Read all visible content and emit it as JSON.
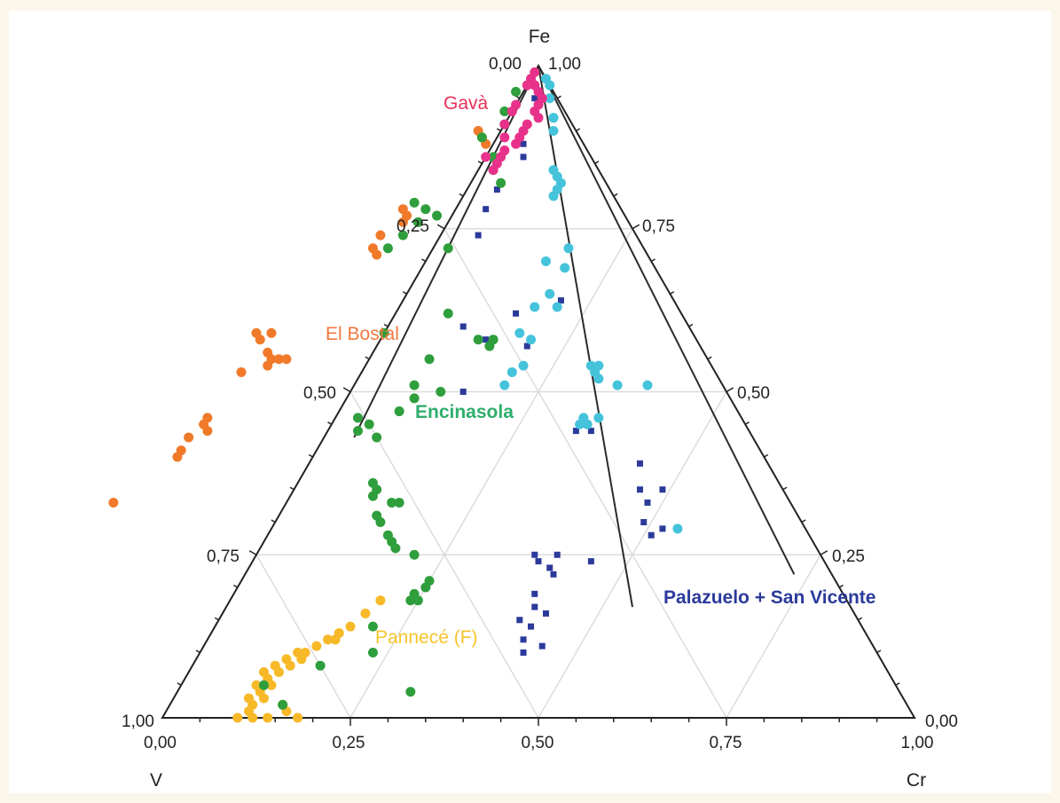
{
  "chart_data": {
    "type": "scatter",
    "subtype": "ternary",
    "axes": {
      "top": "Fe",
      "left": "V",
      "right": "Cr",
      "range": [
        0,
        1
      ],
      "ticks": [
        0,
        0.25,
        0.5,
        0.75,
        1
      ]
    },
    "tick_labels": {
      "bottom": [
        "0,00",
        "0,25",
        "0,50",
        "0,75",
        "1,00"
      ],
      "left": [
        "1,00",
        "0,75",
        "0,50",
        "0,25",
        "0,00"
      ],
      "right": [
        "0,00",
        "0,25",
        "0,50",
        "0,75",
        "1,00"
      ]
    },
    "grid": true,
    "colors": {
      "Gavà": "#e8318a",
      "El Bostal": "#f07a2a",
      "Encinasola": "#2f9e3c",
      "Pannecé (F)": "#f7b928",
      "Palazuelo + San Vicente": "#2b3a9a",
      "cyan_series": "#45c3db"
    },
    "label_colors": {
      "Gavà": "#e8315a",
      "El Bostal": "#f07840",
      "Encinasola": "#2fae6c",
      "Pannecé (F)": "#f7c42a",
      "Palazuelo + San Vicente": "#2b3a9a"
    },
    "group_labels": [
      "Gavà",
      "El Bostal",
      "Encinasola",
      "Pannecé (F)",
      "Palazuelo + San Vicente"
    ],
    "divider_lines": [
      {
        "from": {
          "fe": 1,
          "cr": 0
        },
        "to": {
          "fe": 0.43,
          "cr": 0.04
        }
      },
      {
        "from": {
          "fe": 1,
          "cr": 0
        },
        "to": {
          "fe": 0.17,
          "cr": 0.54
        }
      },
      {
        "from": {
          "fe": 1,
          "cr": 0
        },
        "to": {
          "fe": 0.22,
          "cr": 0.73
        }
      }
    ],
    "series": [
      {
        "name": "Gavà",
        "marker": "circle",
        "points": [
          {
            "fe": 0.99,
            "cr": 0.0
          },
          {
            "fe": 0.98,
            "cr": 0.0
          },
          {
            "fe": 0.97,
            "cr": 0.01
          },
          {
            "fe": 0.96,
            "cr": 0.02
          },
          {
            "fe": 0.95,
            "cr": 0.03
          },
          {
            "fe": 0.94,
            "cr": 0.03
          },
          {
            "fe": 0.93,
            "cr": 0.03
          },
          {
            "fe": 0.92,
            "cr": 0.04
          },
          {
            "fe": 0.91,
            "cr": 0.03
          },
          {
            "fe": 0.9,
            "cr": 0.03
          },
          {
            "fe": 0.89,
            "cr": 0.03
          },
          {
            "fe": 0.88,
            "cr": 0.03
          },
          {
            "fe": 0.87,
            "cr": 0.02
          },
          {
            "fe": 0.86,
            "cr": 0.02
          },
          {
            "fe": 0.85,
            "cr": 0.02
          },
          {
            "fe": 0.84,
            "cr": 0.02
          },
          {
            "fe": 0.94,
            "cr": 0.0
          },
          {
            "fe": 0.91,
            "cr": 0.0
          },
          {
            "fe": 0.89,
            "cr": 0.01
          },
          {
            "fe": 0.86,
            "cr": 0.0
          },
          {
            "fe": 0.93,
            "cr": 0.0
          },
          {
            "fe": 0.97,
            "cr": 0.0
          }
        ]
      },
      {
        "name": "El Bostal",
        "marker": "circle",
        "points": [
          {
            "fe": 0.9,
            "cr": -0.03
          },
          {
            "fe": 0.89,
            "cr": -0.02
          },
          {
            "fe": 0.88,
            "cr": -0.01
          },
          {
            "fe": 0.78,
            "cr": -0.07
          },
          {
            "fe": 0.77,
            "cr": -0.06
          },
          {
            "fe": 0.76,
            "cr": -0.06
          },
          {
            "fe": 0.74,
            "cr": -0.08
          },
          {
            "fe": 0.72,
            "cr": -0.08
          },
          {
            "fe": 0.71,
            "cr": -0.07
          },
          {
            "fe": 0.59,
            "cr": -0.17
          },
          {
            "fe": 0.59,
            "cr": -0.15
          },
          {
            "fe": 0.58,
            "cr": -0.16
          },
          {
            "fe": 0.56,
            "cr": -0.14
          },
          {
            "fe": 0.55,
            "cr": -0.13
          },
          {
            "fe": 0.55,
            "cr": -0.12
          },
          {
            "fe": 0.55,
            "cr": -0.11
          },
          {
            "fe": 0.54,
            "cr": -0.13
          },
          {
            "fe": 0.53,
            "cr": -0.16
          },
          {
            "fe": 0.46,
            "cr": -0.17
          },
          {
            "fe": 0.45,
            "cr": -0.17
          },
          {
            "fe": 0.44,
            "cr": -0.16
          },
          {
            "fe": 0.43,
            "cr": -0.18
          },
          {
            "fe": 0.41,
            "cr": -0.18
          },
          {
            "fe": 0.4,
            "cr": -0.18
          },
          {
            "fe": 0.33,
            "cr": -0.23
          }
        ]
      },
      {
        "name": "Encinasola",
        "marker": "circle",
        "points": [
          {
            "fe": 0.96,
            "cr": -0.01
          },
          {
            "fe": 0.93,
            "cr": -0.01
          },
          {
            "fe": 0.91,
            "cr": 0.0
          },
          {
            "fe": 0.89,
            "cr": -0.02
          },
          {
            "fe": 0.86,
            "cr": 0.01
          },
          {
            "fe": 0.84,
            "cr": 0.02
          },
          {
            "fe": 0.82,
            "cr": 0.04
          },
          {
            "fe": 0.79,
            "cr": -0.06
          },
          {
            "fe": 0.78,
            "cr": -0.04
          },
          {
            "fe": 0.77,
            "cr": -0.02
          },
          {
            "fe": 0.76,
            "cr": -0.04
          },
          {
            "fe": 0.74,
            "cr": -0.05
          },
          {
            "fe": 0.72,
            "cr": -0.06
          },
          {
            "fe": 0.72,
            "cr": 0.02
          },
          {
            "fe": 0.59,
            "cr": 0.0
          },
          {
            "fe": 0.62,
            "cr": 0.07
          },
          {
            "fe": 0.58,
            "cr": 0.13
          },
          {
            "fe": 0.57,
            "cr": 0.15
          },
          {
            "fe": 0.58,
            "cr": 0.15
          },
          {
            "fe": 0.55,
            "cr": 0.08
          },
          {
            "fe": 0.51,
            "cr": 0.08
          },
          {
            "fe": 0.5,
            "cr": 0.12
          },
          {
            "fe": 0.49,
            "cr": 0.09
          },
          {
            "fe": 0.47,
            "cr": 0.08
          },
          {
            "fe": 0.46,
            "cr": 0.03
          },
          {
            "fe": 0.45,
            "cr": 0.05
          },
          {
            "fe": 0.44,
            "cr": 0.04
          },
          {
            "fe": 0.43,
            "cr": 0.07
          },
          {
            "fe": 0.36,
            "cr": 0.1
          },
          {
            "fe": 0.35,
            "cr": 0.11
          },
          {
            "fe": 0.34,
            "cr": 0.11
          },
          {
            "fe": 0.33,
            "cr": 0.15
          },
          {
            "fe": 0.33,
            "cr": 0.14
          },
          {
            "fe": 0.31,
            "cr": 0.13
          },
          {
            "fe": 0.3,
            "cr": 0.14
          },
          {
            "fe": 0.28,
            "cr": 0.16
          },
          {
            "fe": 0.27,
            "cr": 0.17
          },
          {
            "fe": 0.26,
            "cr": 0.18
          },
          {
            "fe": 0.25,
            "cr": 0.21
          },
          {
            "fe": 0.21,
            "cr": 0.25
          },
          {
            "fe": 0.2,
            "cr": 0.25
          },
          {
            "fe": 0.19,
            "cr": 0.24
          },
          {
            "fe": 0.18,
            "cr": 0.24
          },
          {
            "fe": 0.18,
            "cr": 0.25
          },
          {
            "fe": 0.14,
            "cr": 0.21
          },
          {
            "fe": 0.1,
            "cr": 0.23
          },
          {
            "fe": 0.05,
            "cr": 0.11
          },
          {
            "fe": 0.08,
            "cr": 0.17
          },
          {
            "fe": 0.02,
            "cr": 0.15
          },
          {
            "fe": 0.04,
            "cr": 0.31
          }
        ]
      },
      {
        "name": "Pannecé (F)",
        "marker": "circle",
        "points": [
          {
            "fe": 0.18,
            "cr": 0.2
          },
          {
            "fe": 0.16,
            "cr": 0.19
          },
          {
            "fe": 0.14,
            "cr": 0.18
          },
          {
            "fe": 0.13,
            "cr": 0.17
          },
          {
            "fe": 0.12,
            "cr": 0.17
          },
          {
            "fe": 0.12,
            "cr": 0.16
          },
          {
            "fe": 0.11,
            "cr": 0.15
          },
          {
            "fe": 0.1,
            "cr": 0.14
          },
          {
            "fe": 0.1,
            "cr": 0.13
          },
          {
            "fe": 0.09,
            "cr": 0.14
          },
          {
            "fe": 0.09,
            "cr": 0.12
          },
          {
            "fe": 0.08,
            "cr": 0.13
          },
          {
            "fe": 0.08,
            "cr": 0.11
          },
          {
            "fe": 0.07,
            "cr": 0.12
          },
          {
            "fe": 0.07,
            "cr": 0.1
          },
          {
            "fe": 0.06,
            "cr": 0.11
          },
          {
            "fe": 0.05,
            "cr": 0.12
          },
          {
            "fe": 0.05,
            "cr": 0.1
          },
          {
            "fe": 0.04,
            "cr": 0.11
          },
          {
            "fe": 0.03,
            "cr": 0.1
          },
          {
            "fe": 0.03,
            "cr": 0.12
          },
          {
            "fe": 0.02,
            "cr": 0.11
          },
          {
            "fe": 0.01,
            "cr": 0.11
          },
          {
            "fe": 0.0,
            "cr": 0.1
          },
          {
            "fe": 0.0,
            "cr": 0.12
          },
          {
            "fe": 0.0,
            "cr": 0.14
          },
          {
            "fe": 0.01,
            "cr": 0.16
          },
          {
            "fe": 0.02,
            "cr": 0.15
          },
          {
            "fe": 0.0,
            "cr": 0.18
          }
        ]
      },
      {
        "name": "",
        "marker": "circle",
        "points": [
          {
            "fe": 0.98,
            "cr": 0.02
          },
          {
            "fe": 0.97,
            "cr": 0.03
          },
          {
            "fe": 0.95,
            "cr": 0.04
          },
          {
            "fe": 0.92,
            "cr": 0.06
          },
          {
            "fe": 0.9,
            "cr": 0.07
          },
          {
            "fe": 0.84,
            "cr": 0.1
          },
          {
            "fe": 0.83,
            "cr": 0.11
          },
          {
            "fe": 0.82,
            "cr": 0.12
          },
          {
            "fe": 0.81,
            "cr": 0.12
          },
          {
            "fe": 0.8,
            "cr": 0.12
          },
          {
            "fe": 0.72,
            "cr": 0.18
          },
          {
            "fe": 0.7,
            "cr": 0.16
          },
          {
            "fe": 0.69,
            "cr": 0.19
          },
          {
            "fe": 0.65,
            "cr": 0.19
          },
          {
            "fe": 0.63,
            "cr": 0.18
          },
          {
            "fe": 0.63,
            "cr": 0.21
          },
          {
            "fe": 0.59,
            "cr": 0.18
          },
          {
            "fe": 0.58,
            "cr": 0.2
          },
          {
            "fe": 0.54,
            "cr": 0.21
          },
          {
            "fe": 0.53,
            "cr": 0.2
          },
          {
            "fe": 0.51,
            "cr": 0.2
          },
          {
            "fe": 0.54,
            "cr": 0.3
          },
          {
            "fe": 0.54,
            "cr": 0.31
          },
          {
            "fe": 0.53,
            "cr": 0.31
          },
          {
            "fe": 0.52,
            "cr": 0.32
          },
          {
            "fe": 0.46,
            "cr": 0.33
          },
          {
            "fe": 0.45,
            "cr": 0.33
          },
          {
            "fe": 0.51,
            "cr": 0.39
          },
          {
            "fe": 0.51,
            "cr": 0.35
          },
          {
            "fe": 0.46,
            "cr": 0.35
          },
          {
            "fe": 0.45,
            "cr": 0.34
          },
          {
            "fe": 0.29,
            "cr": 0.54
          }
        ]
      },
      {
        "name": "Palazuelo + San Vicente",
        "marker": "square",
        "points": [
          {
            "fe": 0.95,
            "cr": 0.02
          },
          {
            "fe": 0.88,
            "cr": 0.04
          },
          {
            "fe": 0.86,
            "cr": 0.05
          },
          {
            "fe": 0.81,
            "cr": 0.04
          },
          {
            "fe": 0.78,
            "cr": 0.04
          },
          {
            "fe": 0.74,
            "cr": 0.05
          },
          {
            "fe": 0.64,
            "cr": 0.21
          },
          {
            "fe": 0.62,
            "cr": 0.16
          },
          {
            "fe": 0.6,
            "cr": 0.1
          },
          {
            "fe": 0.58,
            "cr": 0.14
          },
          {
            "fe": 0.57,
            "cr": 0.2
          },
          {
            "fe": 0.5,
            "cr": 0.15
          },
          {
            "fe": 0.46,
            "cr": 0.33
          },
          {
            "fe": 0.44,
            "cr": 0.35
          },
          {
            "fe": 0.44,
            "cr": 0.33
          },
          {
            "fe": 0.39,
            "cr": 0.44
          },
          {
            "fe": 0.35,
            "cr": 0.46
          },
          {
            "fe": 0.33,
            "cr": 0.48
          },
          {
            "fe": 0.3,
            "cr": 0.49
          },
          {
            "fe": 0.29,
            "cr": 0.52
          },
          {
            "fe": 0.28,
            "cr": 0.51
          },
          {
            "fe": 0.25,
            "cr": 0.4
          },
          {
            "fe": 0.25,
            "cr": 0.37
          },
          {
            "fe": 0.24,
            "cr": 0.38
          },
          {
            "fe": 0.23,
            "cr": 0.4
          },
          {
            "fe": 0.22,
            "cr": 0.41
          },
          {
            "fe": 0.19,
            "cr": 0.4
          },
          {
            "fe": 0.17,
            "cr": 0.41
          },
          {
            "fe": 0.16,
            "cr": 0.43
          },
          {
            "fe": 0.15,
            "cr": 0.4
          },
          {
            "fe": 0.14,
            "cr": 0.42
          },
          {
            "fe": 0.12,
            "cr": 0.42
          },
          {
            "fe": 0.11,
            "cr": 0.45
          },
          {
            "fe": 0.1,
            "cr": 0.43
          },
          {
            "fe": 0.24,
            "cr": 0.45
          },
          {
            "fe": 0.35,
            "cr": 0.49
          }
        ]
      }
    ]
  }
}
